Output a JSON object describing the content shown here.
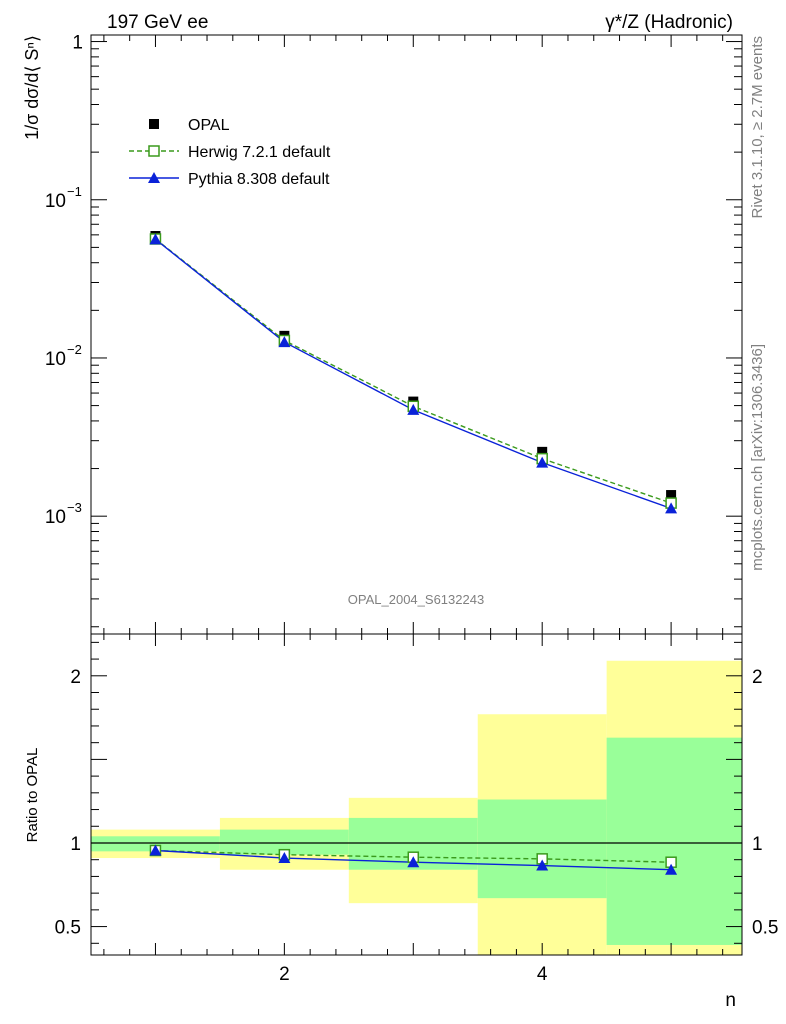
{
  "chart_data": {
    "type": "line",
    "header": {
      "left": "197 GeV ee",
      "right": "γ*/Z (Hadronic)"
    },
    "side_labels": {
      "top": "Rivet 3.1.10, ≥ 2.7M events",
      "bottom": "mcplots.cern.ch [arXiv:1306.3436]"
    },
    "watermark": "OPAL_2004_S6132243",
    "xlabel": "n",
    "xlim": [
      0.5,
      5.55
    ],
    "x_ticks": [
      2,
      4
    ],
    "main": {
      "ylabel": "1/σ dσ/d⟨ Sⁿ⟩",
      "yscale": "log",
      "ylim": [
        0.00018,
        1.1
      ],
      "y_ticks": [
        {
          "value": 1,
          "label": "1"
        },
        {
          "value": 0.1,
          "label": "10",
          "exp": "−1"
        },
        {
          "value": 0.01,
          "label": "10",
          "exp": "−2"
        },
        {
          "value": 0.001,
          "label": "10",
          "exp": "−3"
        }
      ],
      "series": [
        {
          "name": "OPAL",
          "color": "#000000",
          "marker": "filled-square",
          "line": "none",
          "x": [
            1,
            2,
            3,
            4,
            5
          ],
          "values": [
            0.059,
            0.0138,
            0.0053,
            0.00255,
            0.00136
          ]
        },
        {
          "name": "Herwig 7.2.1 default",
          "color": "#3a9a1c",
          "marker": "open-square",
          "line": "dashed",
          "x": [
            1,
            2,
            3,
            4,
            5
          ],
          "values": [
            0.0565,
            0.0129,
            0.00495,
            0.00231,
            0.00121
          ]
        },
        {
          "name": "Pythia 8.308 default",
          "color": "#0a22d8",
          "marker": "filled-triangle",
          "line": "solid",
          "x": [
            1,
            2,
            3,
            4,
            5
          ],
          "values": [
            0.0562,
            0.0126,
            0.0047,
            0.00218,
            0.00112
          ]
        }
      ]
    },
    "ratio": {
      "ylabel": "Ratio to OPAL",
      "ylim": [
        0.33,
        2.25
      ],
      "y_ticks": [
        {
          "value": 0.5,
          "label": "0.5"
        },
        {
          "value": 1,
          "label": "1"
        },
        {
          "value": 2,
          "label": "2"
        }
      ],
      "bands": [
        {
          "x": [
            0.5,
            1.5
          ],
          "yellow": [
            0.91,
            1.08
          ],
          "green": [
            0.95,
            1.04
          ]
        },
        {
          "x": [
            1.5,
            2.5
          ],
          "yellow": [
            0.84,
            1.15
          ],
          "green": [
            0.93,
            1.08
          ]
        },
        {
          "x": [
            2.5,
            3.5
          ],
          "yellow": [
            0.64,
            1.27
          ],
          "green": [
            0.84,
            1.15
          ]
        },
        {
          "x": [
            3.5,
            4.5
          ],
          "yellow": [
            0.33,
            1.77
          ],
          "green": [
            0.67,
            1.26
          ]
        },
        {
          "x": [
            4.5,
            5.55
          ],
          "yellow": [
            0.33,
            2.09
          ],
          "green": [
            0.39,
            1.63
          ]
        }
      ],
      "series": [
        {
          "name": "Herwig 7.2.1 default",
          "color": "#3a9a1c",
          "marker": "open-square",
          "line": "dashed",
          "x": [
            1,
            2,
            3,
            4,
            5
          ],
          "values": [
            0.955,
            0.93,
            0.915,
            0.905,
            0.885
          ]
        },
        {
          "name": "Pythia 8.308 default",
          "color": "#0a22d8",
          "marker": "filled-triangle",
          "line": "solid",
          "x": [
            1,
            2,
            3,
            4,
            5
          ],
          "values": [
            0.955,
            0.91,
            0.885,
            0.865,
            0.84
          ]
        }
      ]
    }
  }
}
